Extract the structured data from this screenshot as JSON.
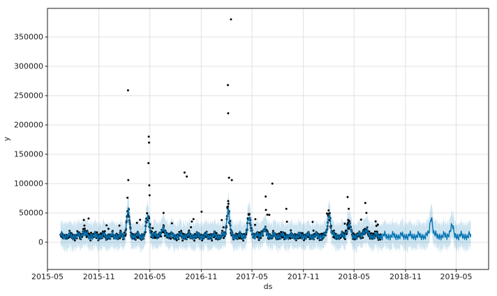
{
  "chart_data": {
    "type": "line",
    "subtype": "forecast-with-uncertainty-band-and-observations",
    "title": "",
    "xlabel": "ds",
    "ylabel": "y",
    "grid": true,
    "legend": "none",
    "x_tick_labels": [
      "2015-05",
      "2015-11",
      "2016-05",
      "2016-11",
      "2017-05",
      "2017-11",
      "2018-05",
      "2018-11",
      "2019-05"
    ],
    "x_tick_dates": [
      "2015-05-01",
      "2015-11-01",
      "2016-05-01",
      "2016-11-01",
      "2017-05-01",
      "2017-11-01",
      "2018-05-01",
      "2018-11-01",
      "2019-05-01"
    ],
    "y_ticks": [
      0,
      50000,
      100000,
      150000,
      200000,
      250000,
      300000,
      350000
    ],
    "y_tick_labels": [
      "0",
      "50000",
      "100000",
      "150000",
      "200000",
      "250000",
      "300000",
      "350000"
    ],
    "xlim": [
      "2015-05-01",
      "2019-08-25"
    ],
    "ylim": [
      -46400,
      398800
    ],
    "colors": {
      "line": "#0072B2",
      "band": "rgba(0,114,178,0.2)",
      "points": "#000000",
      "grid": "#e0e0e0",
      "spine": "#1a1a1a",
      "text": "#1a1a1a",
      "background": "#ffffff"
    },
    "seed": 7,
    "forecast": {
      "start": "2015-06-17",
      "end": "2019-06-22",
      "base_level": 10800,
      "weekly_pattern": [
        4200,
        1800,
        -300,
        -1600,
        -800,
        -4600,
        1300
      ],
      "monthly_amplitude": 2600,
      "biweekly_amplitude": 1500,
      "spikes": [
        {
          "date": "2015-09-08",
          "amplitude": 7000,
          "sigma_days": 5
        },
        {
          "date": "2016-02-13",
          "amplitude": 43000,
          "sigma_days": 5
        },
        {
          "date": "2016-04-24",
          "amplitude": 32000,
          "sigma_days": 6
        },
        {
          "date": "2016-06-18",
          "amplitude": 9000,
          "sigma_days": 10
        },
        {
          "date": "2017-02-05",
          "amplitude": 45000,
          "sigma_days": 5
        },
        {
          "date": "2017-04-21",
          "amplitude": 28000,
          "sigma_days": 6
        },
        {
          "date": "2017-06-14",
          "amplitude": 9000,
          "sigma_days": 8
        },
        {
          "date": "2018-02-01",
          "amplitude": 38000,
          "sigma_days": 5
        },
        {
          "date": "2018-04-12",
          "amplitude": 20000,
          "sigma_days": 6
        },
        {
          "date": "2018-06-10",
          "amplitude": 9000,
          "sigma_days": 8
        },
        {
          "date": "2019-02-01",
          "amplitude": 31000,
          "sigma_days": 5
        },
        {
          "date": "2019-04-15",
          "amplitude": 16000,
          "sigma_days": 6
        }
      ],
      "uncertainty_upper_halfwidth": 17500,
      "uncertainty_lower_halfwidth": 16500,
      "uncertainty_jitter": 9000
    },
    "observed": {
      "start": "2015-06-17",
      "end": "2018-08-05",
      "baseline_level": 10800,
      "noise": 5200,
      "outlier_rate": 0.018
    },
    "outlier_points": [
      {
        "ds": "2015-09-08",
        "y": 38000
      },
      {
        "ds": "2015-09-10",
        "y": 28500
      },
      {
        "ds": "2015-11-28",
        "y": 29000
      },
      {
        "ds": "2015-12-05",
        "y": 23000
      },
      {
        "ds": "2016-02-11",
        "y": 76000
      },
      {
        "ds": "2016-02-13",
        "y": 259000
      },
      {
        "ds": "2016-02-14",
        "y": 106000
      },
      {
        "ds": "2016-04-26",
        "y": 135000
      },
      {
        "ds": "2016-04-27",
        "y": 180000
      },
      {
        "ds": "2016-04-28",
        "y": 170000
      },
      {
        "ds": "2016-04-29",
        "y": 97000
      },
      {
        "ds": "2016-04-30",
        "y": 80000
      },
      {
        "ds": "2016-06-19",
        "y": 50000
      },
      {
        "ds": "2016-09-02",
        "y": 119000
      },
      {
        "ds": "2016-09-10",
        "y": 112000
      },
      {
        "ds": "2016-11-02",
        "y": 52000
      },
      {
        "ds": "2017-02-04",
        "y": 268000
      },
      {
        "ds": "2017-02-05",
        "y": 220000
      },
      {
        "ds": "2017-02-08",
        "y": 110000
      },
      {
        "ds": "2017-02-15",
        "y": 380000
      },
      {
        "ds": "2017-02-18",
        "y": 106000
      },
      {
        "ds": "2017-06-19",
        "y": 78000
      },
      {
        "ds": "2017-06-20",
        "y": 55000
      },
      {
        "ds": "2017-06-25",
        "y": 47000
      },
      {
        "ds": "2017-07-13",
        "y": 100000
      },
      {
        "ds": "2017-09-01",
        "y": 57000
      },
      {
        "ds": "2017-09-03",
        "y": 35000
      },
      {
        "ds": "2018-04-08",
        "y": 77000
      },
      {
        "ds": "2018-04-10",
        "y": 38000
      },
      {
        "ds": "2018-04-12",
        "y": 57000
      },
      {
        "ds": "2018-06-10",
        "y": 67000
      },
      {
        "ds": "2018-06-14",
        "y": 50000
      },
      {
        "ds": "2018-07-25",
        "y": 30000
      }
    ]
  }
}
